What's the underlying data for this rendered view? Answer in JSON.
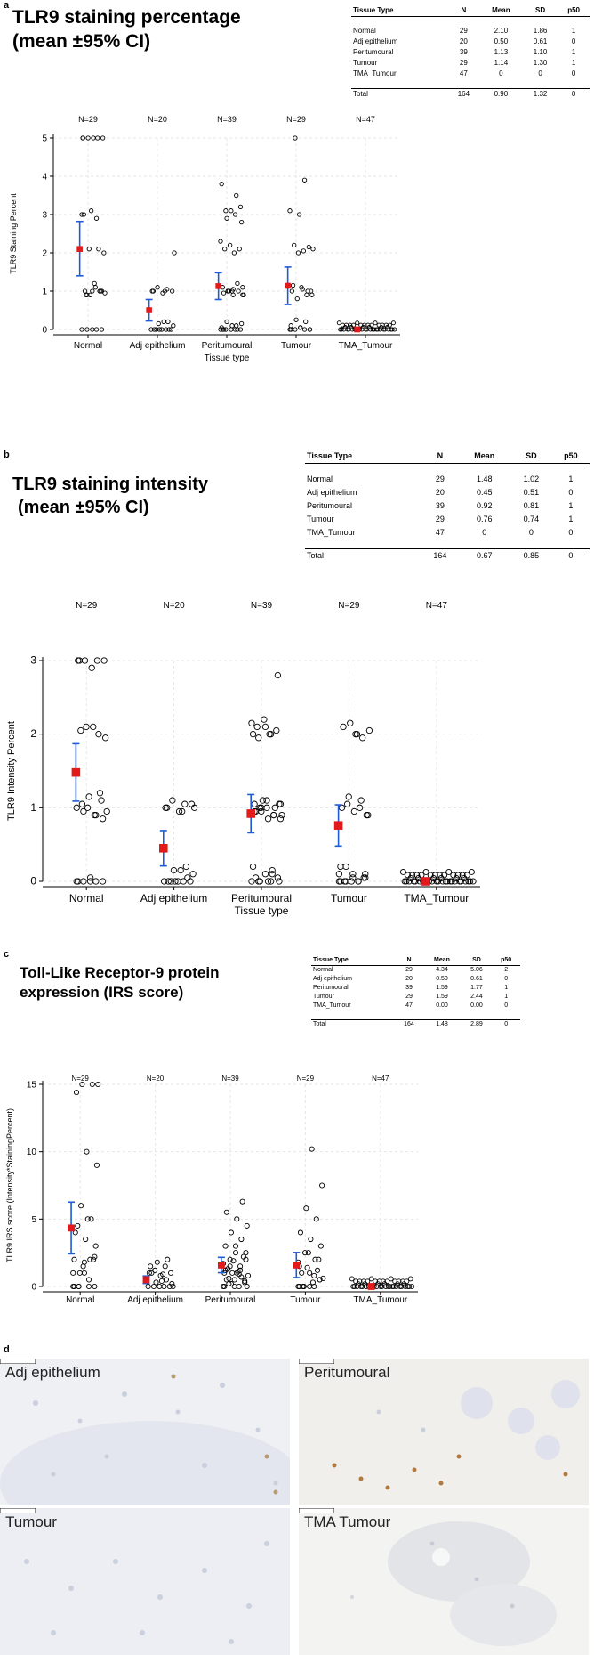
{
  "panels": [
    {
      "label": "a",
      "title_line1": "TLR9 staining percentage",
      "title_line2": "(mean ±95% CI)",
      "table": {
        "headers": [
          "Tissue Type",
          "N",
          "Mean",
          "SD",
          "p50"
        ],
        "rows": [
          [
            "Normal",
            "29",
            "2.10",
            "1.86",
            "1"
          ],
          [
            "Adj epithelium",
            "20",
            "0.50",
            "0.61",
            "0"
          ],
          [
            "Peritumoural",
            "39",
            "1.13",
            "1.10",
            "1"
          ],
          [
            "Tumour",
            "29",
            "1.14",
            "1.30",
            "1"
          ],
          [
            "TMA_Tumour",
            "47",
            "0",
            "0",
            "0"
          ]
        ],
        "total": [
          "Total",
          "164",
          "0.90",
          "1.32",
          "0"
        ]
      }
    },
    {
      "label": "b",
      "title_line1": "TLR9 staining intensity",
      "title_line2": "(mean ±95% CI)",
      "table": {
        "headers": [
          "Tissue Type",
          "N",
          "Mean",
          "SD",
          "p50"
        ],
        "rows": [
          [
            "Normal",
            "29",
            "1.48",
            "1.02",
            "1"
          ],
          [
            "Adj epithelium",
            "20",
            "0.45",
            "0.51",
            "0"
          ],
          [
            "Peritumoural",
            "39",
            "0.92",
            "0.81",
            "1"
          ],
          [
            "Tumour",
            "29",
            "0.76",
            "0.74",
            "1"
          ],
          [
            "TMA_Tumour",
            "47",
            "0",
            "0",
            "0"
          ]
        ],
        "total": [
          "Total",
          "164",
          "0.67",
          "0.85",
          "0"
        ]
      }
    },
    {
      "label": "c",
      "title_line1": "Toll-Like Receptor-9 protein",
      "title_line2": "expression (IRS score)",
      "table": {
        "headers": [
          "Tissue Type",
          "N",
          "Mean",
          "SD",
          "p50"
        ],
        "rows": [
          [
            "Normal",
            "29",
            "4.34",
            "5.06",
            "2"
          ],
          [
            "Adj epithelium",
            "20",
            "0.50",
            "0.61",
            "0"
          ],
          [
            "Peritumoural",
            "39",
            "1.59",
            "1.77",
            "1"
          ],
          [
            "Tumour",
            "29",
            "1.59",
            "2.44",
            "1"
          ],
          [
            "TMA_Tumour",
            "47",
            "0.00",
            "0.00",
            "0"
          ]
        ],
        "total": [
          "Total",
          "164",
          "1.48",
          "2.89",
          "0"
        ]
      }
    }
  ],
  "panel_d": {
    "label": "d",
    "images": [
      {
        "label": "Adj epithelium"
      },
      {
        "label": "Peritumoural"
      },
      {
        "label": "Tumour"
      },
      {
        "label": "TMA Tumour"
      }
    ]
  },
  "chart_data": [
    {
      "type": "scatter",
      "title": "TLR9 staining percentage (mean ±95% CI)",
      "xlabel": "Tissue type",
      "ylabel": "TLR9 Staining Percent",
      "ylim": [
        0,
        5
      ],
      "yticks": [
        0,
        1,
        2,
        3,
        4,
        5
      ],
      "categories": [
        "Normal",
        "Adj epithelium",
        "Peritumoural",
        "Tumour",
        "TMA_Tumour"
      ],
      "n_labels": [
        "N=29",
        "N=20",
        "N=39",
        "N=29",
        "N=47"
      ],
      "means": [
        2.1,
        0.5,
        1.13,
        1.14,
        0
      ],
      "ci_low": [
        1.4,
        0.22,
        0.78,
        0.65,
        0
      ],
      "ci_high": [
        2.82,
        0.78,
        1.48,
        1.63,
        0
      ],
      "points": [
        [
          0,
          0,
          0,
          0,
          0,
          5,
          5,
          5,
          5,
          5,
          3,
          2.1,
          2.1,
          2,
          1.2,
          1,
          1,
          0.9,
          0.95,
          1.1,
          0.9,
          1,
          3.1,
          3,
          2.9,
          0.9,
          1,
          1,
          5
        ],
        [
          0,
          0,
          0,
          0,
          0,
          1,
          1.05,
          1.1,
          1,
          0.95,
          1,
          0.2,
          0.15,
          0.1,
          0.2,
          0,
          0,
          0,
          2,
          1
        ],
        [
          0,
          0,
          0,
          0,
          0,
          0.05,
          0.1,
          0.2,
          0.15,
          1,
          1.1,
          1.2,
          1,
          0.9,
          1.05,
          0.95,
          1,
          1,
          0.9,
          2,
          2.1,
          2.1,
          2.2,
          2.3,
          3,
          3.1,
          3.2,
          3.1,
          3.8,
          3.5,
          2.9,
          2.8,
          0.1,
          0,
          0,
          1,
          1.1,
          0.9,
          0
        ],
        [
          0,
          0,
          0,
          0,
          0.05,
          0.1,
          0.2,
          0.25,
          1,
          1.1,
          1,
          0.9,
          0.8,
          0.9,
          1.05,
          1.15,
          1,
          2,
          2.1,
          2.05,
          2.2,
          2.15,
          3,
          3.1,
          3.9,
          5,
          0,
          0.05,
          0
        ]
      ],
      "tma_count": 47
    },
    {
      "type": "scatter",
      "title": "TLR9 staining intensity (mean ±95% CI)",
      "xlabel": "Tissue type",
      "ylabel": "TLR9 Intensity Percent",
      "ylim": [
        0,
        3
      ],
      "yticks": [
        0,
        1,
        2,
        3
      ],
      "categories": [
        "Normal",
        "Adj epithelium",
        "Peritumoural",
        "Tumour",
        "TMA_Tumour"
      ],
      "n_labels": [
        "N=29",
        "N=20",
        "N=39",
        "N=29",
        "N=47"
      ],
      "means": [
        1.48,
        0.45,
        0.92,
        0.76,
        0
      ],
      "ci_low": [
        1.09,
        0.21,
        0.66,
        0.48,
        0
      ],
      "ci_high": [
        1.87,
        0.69,
        1.18,
        1.04,
        0
      ],
      "points": [
        [
          0,
          0,
          0,
          0,
          0.05,
          3,
          3,
          3,
          3,
          2.9,
          3,
          2,
          2.1,
          1.95,
          2.1,
          2.05,
          1.2,
          1,
          0.95,
          0.9,
          1.05,
          1.1,
          1.15,
          1,
          0.9,
          0.95,
          0.85,
          0,
          0
        ],
        [
          0,
          0,
          0,
          0,
          0,
          1,
          1.05,
          1.1,
          1.05,
          0.95,
          1,
          0.2,
          0.15,
          0.1,
          0.15,
          0,
          0.05,
          0,
          1,
          0.95
        ],
        [
          0,
          0,
          0,
          0.05,
          0.1,
          0.2,
          0.15,
          1,
          1.05,
          1.1,
          0.95,
          0.9,
          1,
          1.05,
          0.85,
          0.95,
          1,
          1.1,
          0.9,
          2,
          2.1,
          2.05,
          2.2,
          2.15,
          2,
          1.95,
          2.8,
          2.1,
          2,
          0.1,
          0,
          0,
          1,
          1.05,
          0.9,
          0.95,
          0.85,
          0,
          0.05
        ],
        [
          0,
          0,
          0,
          0.05,
          0.1,
          0.2,
          1,
          1.05,
          0.9,
          0.95,
          1,
          1.1,
          1.15,
          0.9,
          2,
          2.1,
          1.95,
          2.15,
          2.05,
          2,
          0,
          0.05,
          0,
          0.1,
          0,
          0.2,
          0.1,
          0.05,
          0
        ]
      ],
      "tma_count": 47
    },
    {
      "type": "scatter",
      "title": "Toll-Like Receptor-9 protein expression (IRS score)",
      "xlabel": "",
      "ylabel": "TLR9 IRS score (Intensity*StainingPercent)",
      "ylim": [
        0,
        15
      ],
      "yticks": [
        0,
        5,
        10,
        15
      ],
      "categories": [
        "Normal",
        "Adj epithelium",
        "Peritumoural",
        "Tumour",
        "TMA_Tumour"
      ],
      "n_labels": [
        "N=29",
        "N=20",
        "N=39",
        "N=29",
        "N=47"
      ],
      "means": [
        4.34,
        0.5,
        1.59,
        1.59,
        0
      ],
      "ci_low": [
        2.42,
        0.22,
        1.02,
        0.66,
        0
      ],
      "ci_high": [
        6.26,
        0.78,
        2.16,
        2.52,
        0
      ],
      "points": [
        [
          0,
          0,
          0,
          0,
          1,
          2,
          2,
          1,
          3,
          3.5,
          4,
          5,
          6,
          9,
          10,
          14.4,
          15,
          15,
          15,
          5,
          4.5,
          2,
          1.5,
          1,
          0.5,
          0,
          2.2,
          1.8,
          0
        ],
        [
          0,
          0,
          0,
          0,
          0,
          1,
          1.5,
          1.2,
          1,
          0.8,
          1.5,
          0.5,
          0.3,
          0.2,
          0.4,
          1,
          2,
          1.8,
          0,
          0.9
        ],
        [
          0,
          0,
          0.2,
          0.4,
          0.5,
          1,
          1.2,
          1.5,
          2,
          2.5,
          3,
          3.5,
          4,
          4.5,
          5,
          5.5,
          6.3,
          1,
          0.8,
          1.1,
          1.3,
          2.2,
          1.9,
          1.7,
          0.9,
          0.6,
          0.3,
          0,
          0,
          1.5,
          2,
          2.5,
          3,
          1.2,
          0.7,
          0.2,
          0,
          1,
          0.5
        ],
        [
          0,
          0,
          0,
          0.5,
          1,
          1.5,
          2,
          2.5,
          3,
          3.5,
          4,
          5,
          5.8,
          7.5,
          10.2,
          1,
          1.2,
          1.4,
          0.6,
          0.3,
          0,
          2,
          2.5,
          1.8,
          0.8,
          0,
          0.5,
          0,
          0
        ]
      ],
      "tma_count": 47
    }
  ],
  "colors": {
    "mean_marker": "#e31a1c",
    "ci_bar": "#1f5bd6",
    "grid": "#e6e6e6",
    "point_stroke": "#000000"
  }
}
